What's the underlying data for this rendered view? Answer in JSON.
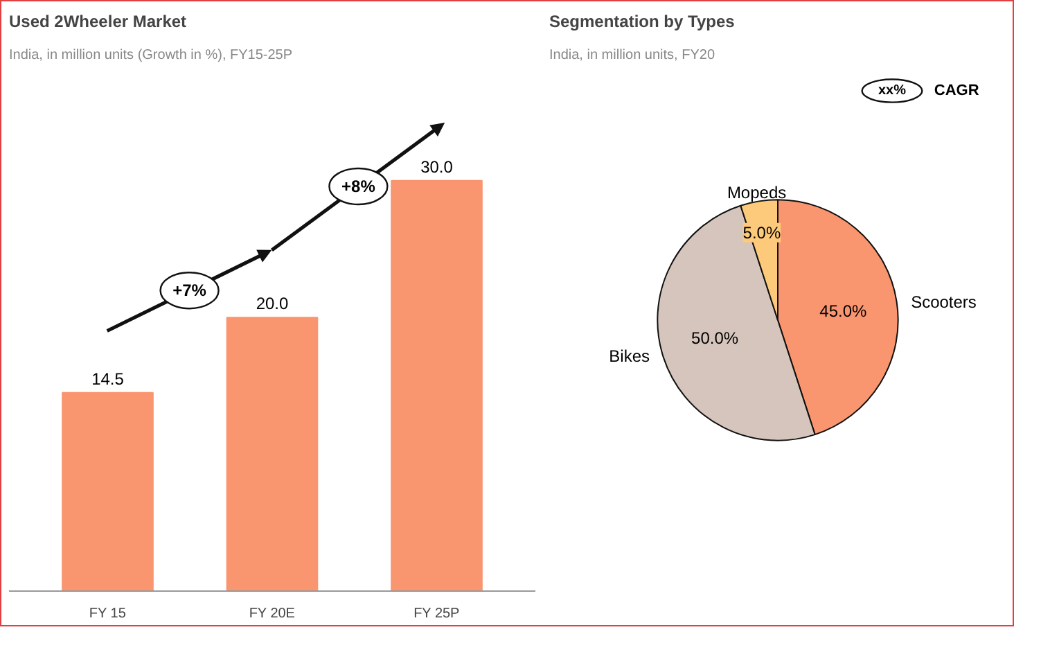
{
  "chart_data": [
    {
      "type": "bar",
      "title": "Used 2Wheeler Market",
      "subtitle": "India, in million units (Growth in %), FY15-25P",
      "categories": [
        "FY 15",
        "FY 20E",
        "FY 25P"
      ],
      "values": [
        14.5,
        20.0,
        30.0
      ],
      "color": "#f9956f",
      "data_labels": true,
      "value_labels": [
        "14.5",
        "20.0",
        "30.0"
      ],
      "annotations": [
        "+7%",
        "+8%"
      ]
    },
    {
      "type": "pie",
      "title": "Segmentation by Types",
      "subtitle": "India, in million units, FY20",
      "categories": [
        "Scooters",
        "Bikes",
        "Mopeds"
      ],
      "values": [
        45.0,
        50.0,
        5.0
      ],
      "colors": [
        "#f9956f",
        "#d5c5bc",
        "#fdc97a"
      ],
      "value_labels": [
        "45.0%",
        "50.0%",
        "5.0%"
      ],
      "annotations": [
        "xx%",
        "CAGR"
      ]
    }
  ]
}
